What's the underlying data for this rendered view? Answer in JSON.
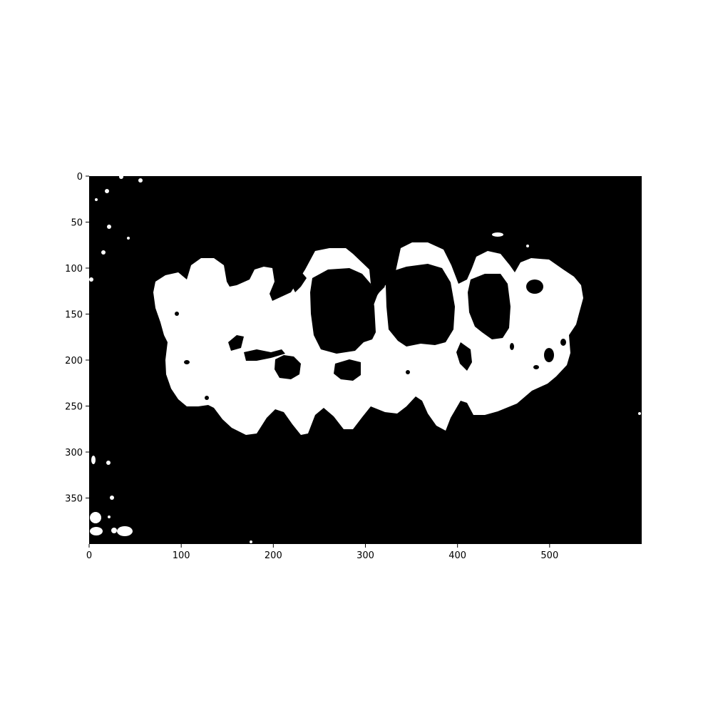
{
  "image_axes": {
    "xticks": [
      0,
      100,
      200,
      300,
      400,
      500
    ],
    "yticks": [
      0,
      50,
      100,
      150,
      200,
      250,
      300,
      350
    ],
    "xlim": [
      0,
      600
    ],
    "ylim": [
      400,
      0
    ],
    "foreground_color": "#ffffff",
    "background_color": "#000000",
    "description_icon": "binary-mask"
  }
}
